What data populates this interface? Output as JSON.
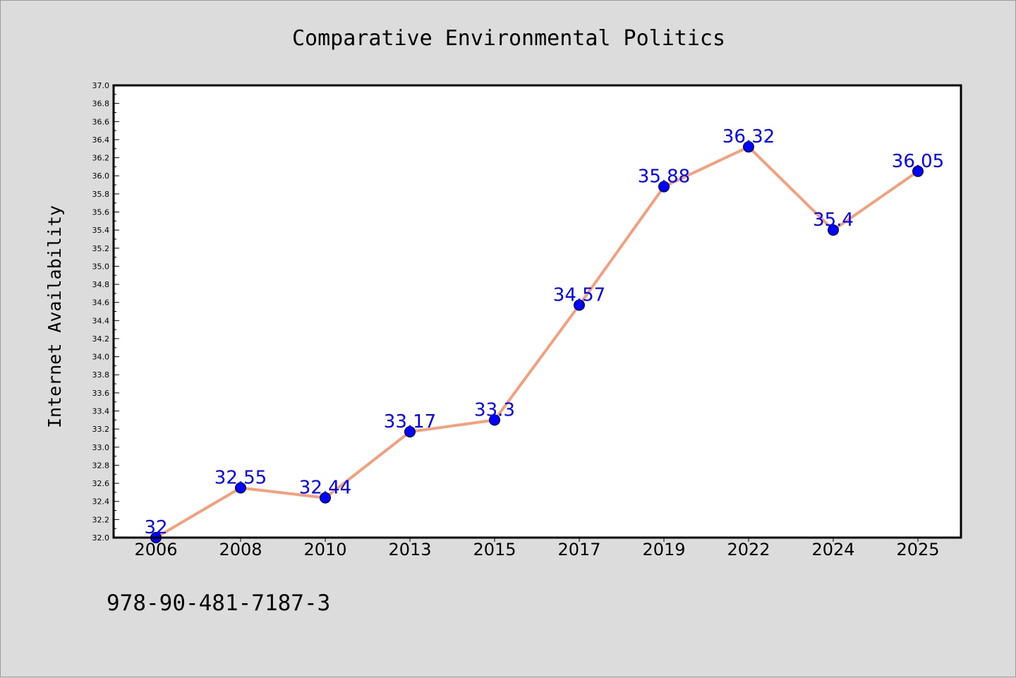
{
  "chart_data": {
    "type": "line",
    "title": "Comparative Environmental Politics",
    "ylabel": "Internet Availability",
    "xlabel": "",
    "categories": [
      "2006",
      "2008",
      "2010",
      "2013",
      "2015",
      "2017",
      "2019",
      "2022",
      "2024",
      "2025"
    ],
    "values": [
      32,
      32.55,
      32.44,
      33.17,
      33.3,
      34.57,
      35.88,
      36.32,
      35.4,
      36.05
    ],
    "data_labels": [
      "32",
      "32.55",
      "32.44",
      "33.17",
      "33.3",
      "34.57",
      "35.88",
      "36.32",
      "35.4",
      "36.05"
    ],
    "ylim": [
      32.0,
      37.0
    ],
    "yticks": [
      "32.0",
      "32.2",
      "32.4",
      "32.6",
      "32.8",
      "33.0",
      "33.2",
      "33.4",
      "33.6",
      "33.8",
      "34.0",
      "34.2",
      "34.4",
      "34.6",
      "34.8",
      "35.0",
      "35.2",
      "35.4",
      "35.6",
      "35.8",
      "36.0",
      "36.2",
      "36.4",
      "36.6",
      "36.8",
      "37.0"
    ],
    "grid": false,
    "legend": "none",
    "colors": {
      "line": "#f4a07d",
      "marker": "#0000ff",
      "label": "#0000ff",
      "background": "#dcdcdc",
      "plot_area": "#ffffff"
    }
  },
  "footer": {
    "isbn": "978-90-481-7187-3"
  }
}
